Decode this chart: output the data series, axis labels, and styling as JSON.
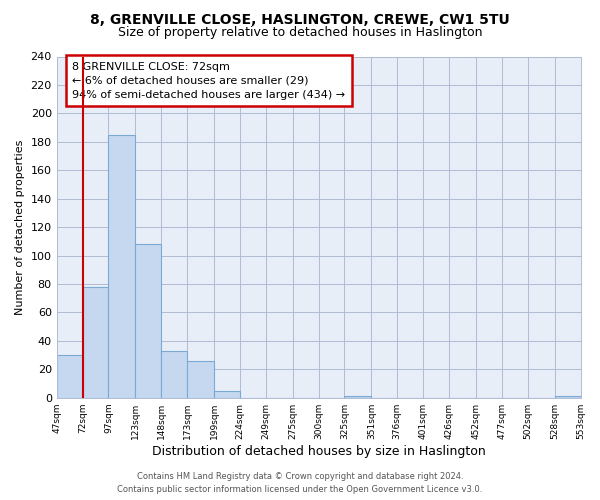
{
  "title": "8, GRENVILLE CLOSE, HASLINGTON, CREWE, CW1 5TU",
  "subtitle": "Size of property relative to detached houses in Haslington",
  "xlabel": "Distribution of detached houses by size in Haslington",
  "ylabel": "Number of detached properties",
  "bar_edges": [
    47,
    72,
    97,
    123,
    148,
    173,
    199,
    224,
    249,
    275,
    300,
    325,
    351,
    376,
    401,
    426,
    452,
    477,
    502,
    528,
    553
  ],
  "bar_heights": [
    30,
    78,
    185,
    108,
    33,
    26,
    5,
    0,
    0,
    0,
    0,
    1,
    0,
    0,
    0,
    0,
    0,
    0,
    0,
    1
  ],
  "highlight_bar_index": 1,
  "highlight_line_color": "#cc0000",
  "normal_color": "#c5d8f0",
  "normal_edge_color": "#7aaad4",
  "ylim": [
    0,
    240
  ],
  "yticks": [
    0,
    20,
    40,
    60,
    80,
    100,
    120,
    140,
    160,
    180,
    200,
    220,
    240
  ],
  "grid_color": "#b0bcd4",
  "axes_bg_color": "#e8eef8",
  "background_color": "#ffffff",
  "annotation_title": "8 GRENVILLE CLOSE: 72sqm",
  "annotation_line1": "← 6% of detached houses are smaller (29)",
  "annotation_line2": "94% of semi-detached houses are larger (434) →",
  "annotation_box_color": "#ffffff",
  "annotation_box_edge": "#cc0000",
  "footer1": "Contains HM Land Registry data © Crown copyright and database right 2024.",
  "footer2": "Contains public sector information licensed under the Open Government Licence v3.0.",
  "tick_labels": [
    "47sqm",
    "72sqm",
    "97sqm",
    "123sqm",
    "148sqm",
    "173sqm",
    "199sqm",
    "224sqm",
    "249sqm",
    "275sqm",
    "300sqm",
    "325sqm",
    "351sqm",
    "376sqm",
    "401sqm",
    "426sqm",
    "452sqm",
    "477sqm",
    "502sqm",
    "528sqm",
    "553sqm"
  ]
}
